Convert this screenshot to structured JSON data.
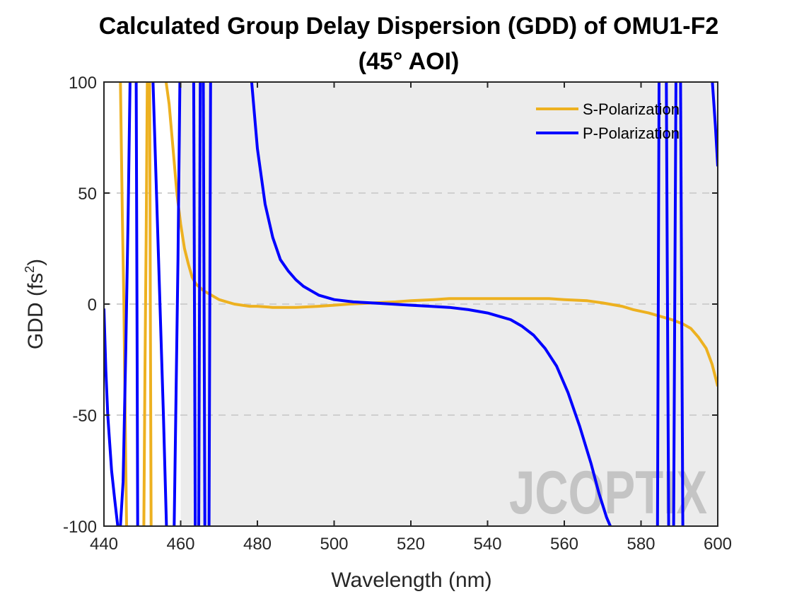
{
  "chart_data": {
    "type": "line",
    "title_line1": "Calculated Group Delay Dispersion (GDD) of OMU1-F2",
    "title_line2": "(45° AOI)",
    "xlabel": "Wavelength (nm)",
    "ylabel_main": "GDD (fs",
    "ylabel_sup": "2",
    "ylabel_close": ")",
    "xlim": [
      440,
      600
    ],
    "ylim": [
      -100,
      100
    ],
    "xticks": [
      440,
      460,
      480,
      500,
      520,
      540,
      560,
      580,
      600
    ],
    "yticks": [
      -100,
      -50,
      0,
      50,
      100
    ],
    "grid": "dashed horizontal at y = 50, 0, -50",
    "shaded_region": [
      460,
      600
    ],
    "legend_position": "top-right",
    "watermark": "JCOPTIX",
    "series": [
      {
        "name": "S-Polarization",
        "color": "#EDB120",
        "segments": [
          [
            [
              444.3,
              100
            ],
            [
              444.8,
              40
            ],
            [
              445.2,
              0
            ],
            [
              445.6,
              -60
            ],
            [
              445.9,
              -100
            ]
          ],
          [
            [
              450.4,
              -100
            ],
            [
              450.7,
              -30
            ],
            [
              451.0,
              30
            ],
            [
              451.3,
              100
            ]
          ],
          [
            [
              451.9,
              100
            ],
            [
              452.1,
              0
            ],
            [
              452.3,
              -100
            ]
          ],
          [
            [
              456.2,
              100
            ],
            [
              457,
              90
            ],
            [
              458,
              70
            ],
            [
              459,
              50
            ],
            [
              460,
              36
            ],
            [
              461,
              25
            ],
            [
              462,
              18
            ],
            [
              463,
              12
            ],
            [
              464,
              9
            ],
            [
              466,
              6
            ],
            [
              468,
              4
            ],
            [
              470,
              2
            ],
            [
              472,
              1
            ],
            [
              474,
              0
            ],
            [
              476,
              -0.5
            ],
            [
              478,
              -1
            ],
            [
              480,
              -1
            ],
            [
              484,
              -1.5
            ],
            [
              490,
              -1.5
            ],
            [
              496,
              -1
            ],
            [
              500,
              -0.5
            ],
            [
              504,
              0
            ],
            [
              510,
              0.5
            ],
            [
              516,
              1
            ],
            [
              520,
              1.5
            ],
            [
              526,
              2
            ],
            [
              530,
              2.5
            ],
            [
              540,
              2.5
            ],
            [
              550,
              2.5
            ],
            [
              556,
              2.5
            ],
            [
              560,
              2
            ],
            [
              566,
              1.5
            ],
            [
              570,
              0.5
            ],
            [
              575,
              -1
            ],
            [
              578,
              -2.5
            ],
            [
              582,
              -4
            ],
            [
              585,
              -5.5
            ],
            [
              588,
              -7
            ],
            [
              591,
              -9
            ],
            [
              593,
              -11
            ],
            [
              595,
              -15
            ],
            [
              597,
              -20
            ],
            [
              598.5,
              -27
            ],
            [
              600,
              -37
            ]
          ]
        ]
      },
      {
        "name": "P-Polarization",
        "color": "#0000FF",
        "segments": [
          [
            [
              440,
              -2
            ],
            [
              440.5,
              -30
            ],
            [
              441,
              -50
            ],
            [
              442,
              -75
            ],
            [
              442.8,
              -88
            ],
            [
              443.6,
              -100
            ]
          ],
          [
            [
              444.3,
              -100
            ],
            [
              445,
              -80
            ],
            [
              445.7,
              -20
            ],
            [
              446.3,
              40
            ],
            [
              446.8,
              100
            ]
          ],
          [
            [
              448.4,
              100
            ],
            [
              448.6,
              0
            ],
            [
              448.8,
              -100
            ]
          ],
          [
            [
              452.8,
              100
            ],
            [
              453.7,
              50
            ],
            [
              454.6,
              0
            ],
            [
              455.5,
              -50
            ],
            [
              456.3,
              -100
            ]
          ],
          [
            [
              458.3,
              -100
            ],
            [
              458.8,
              -40
            ],
            [
              459.3,
              20
            ],
            [
              459.8,
              100
            ]
          ],
          [
            [
              463.4,
              100
            ],
            [
              463.6,
              0
            ],
            [
              463.8,
              -100
            ]
          ],
          [
            [
              464.7,
              -100
            ],
            [
              464.9,
              0
            ],
            [
              465.1,
              100
            ]
          ],
          [
            [
              465.9,
              100
            ],
            [
              466.1,
              0
            ],
            [
              466.3,
              -100
            ]
          ],
          [
            [
              467.4,
              -100
            ],
            [
              467.6,
              0
            ],
            [
              467.8,
              100
            ]
          ],
          [
            [
              478.5,
              100
            ],
            [
              480,
              70
            ],
            [
              482,
              45
            ],
            [
              484,
              30
            ],
            [
              486,
              20
            ],
            [
              488,
              15
            ],
            [
              490,
              11
            ],
            [
              492,
              8
            ],
            [
              494,
              6
            ],
            [
              496,
              4
            ],
            [
              500,
              2
            ],
            [
              505,
              1
            ],
            [
              510,
              0.5
            ],
            [
              515,
              0
            ],
            [
              520,
              -0.5
            ],
            [
              525,
              -1
            ],
            [
              530,
              -1.5
            ],
            [
              535,
              -2.5
            ],
            [
              540,
              -4
            ],
            [
              543,
              -5.5
            ],
            [
              546,
              -7
            ],
            [
              549,
              -10
            ],
            [
              552,
              -14
            ],
            [
              555,
              -20
            ],
            [
              558,
              -28
            ],
            [
              561,
              -40
            ],
            [
              564,
              -55
            ],
            [
              567,
              -72
            ],
            [
              569,
              -85
            ],
            [
              571,
              -96
            ],
            [
              572,
              -100
            ]
          ],
          [
            [
              584.3,
              -100
            ],
            [
              584.5,
              0
            ],
            [
              584.7,
              100
            ]
          ],
          [
            [
              586.6,
              100
            ],
            [
              586.9,
              0
            ],
            [
              587.2,
              -100
            ]
          ],
          [
            [
              588.5,
              -100
            ],
            [
              588.8,
              0
            ],
            [
              589.1,
              100
            ]
          ],
          [
            [
              590.3,
              100
            ],
            [
              590.6,
              0
            ],
            [
              590.9,
              -100
            ]
          ],
          [
            [
              598.6,
              100
            ],
            [
              599.4,
              80
            ],
            [
              600,
              62
            ]
          ]
        ]
      }
    ]
  }
}
